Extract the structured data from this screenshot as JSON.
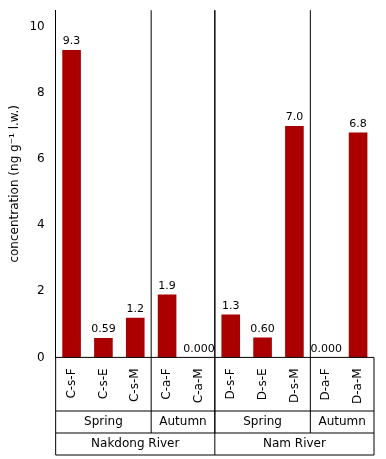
{
  "chart_data": {
    "type": "bar",
    "categories": [
      "C-s-F",
      "C-s-E",
      "C-s-M",
      "C-a-F",
      "C-a-M",
      "D-s-F",
      "D-s-E",
      "D-s-M",
      "D-a-F",
      "D-a-M"
    ],
    "values": [
      9.3,
      0.59,
      1.2,
      1.9,
      0.0,
      1.3,
      0.6,
      7.0,
      0.0,
      6.8
    ],
    "value_labels": [
      "9.3",
      "0.59",
      "1.2",
      "1.9",
      "0.000",
      "1.3",
      "0.60",
      "7.0",
      "0.000",
      "6.8"
    ],
    "data_labels": true,
    "color": "#AA0000",
    "ylabel": "concentration (ng g⁻¹ l.w.)",
    "ylim": [
      0,
      10.5
    ],
    "yticks": [
      0,
      2,
      4,
      6,
      8,
      10
    ],
    "grid": false,
    "annotations": [
      {
        "text": "Spring",
        "categories": [
          "C-s-F",
          "C-s-E",
          "C-s-M"
        ]
      },
      {
        "text": "Autumn",
        "categories": [
          "C-a-F",
          "C-a-M"
        ]
      },
      {
        "text": "Spring",
        "categories": [
          "D-s-F",
          "D-s-E",
          "D-s-M"
        ]
      },
      {
        "text": "Autumn",
        "categories": [
          "D-a-F",
          "D-a-M"
        ]
      },
      {
        "text": "Nakdong River",
        "categories": [
          "C-s-F",
          "C-s-E",
          "C-s-M",
          "C-a-F",
          "C-a-M"
        ]
      },
      {
        "text": "Nam River",
        "categories": [
          "D-s-F",
          "D-s-E",
          "D-s-M",
          "D-a-F",
          "D-a-M"
        ]
      }
    ]
  }
}
